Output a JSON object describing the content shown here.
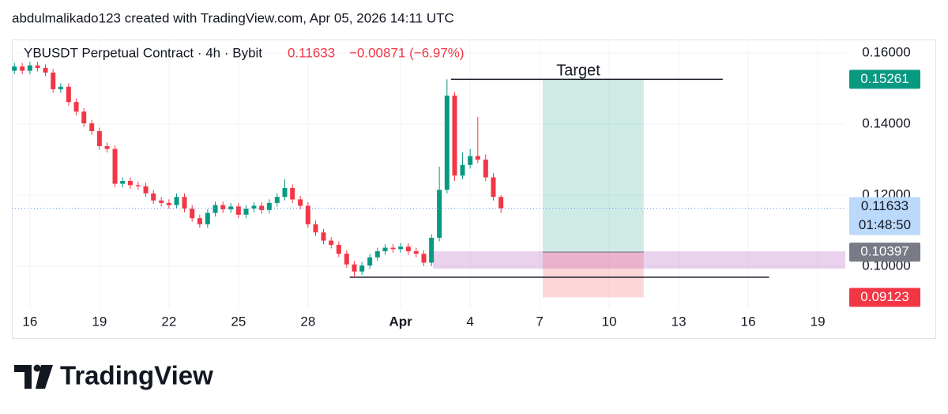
{
  "header": "abdulmalikado123 created with TradingView.com, Apr 05, 2026 14:11 UTC",
  "logo": "TradingView",
  "chart_data": {
    "type": "candlestick",
    "title": "YBUSDT Perpetual Contract · 4h · Bybit",
    "change": "−0.00871 (−6.97%)",
    "last_price": 0.11633,
    "countdown": "01:48:50",
    "up_color": "#089981",
    "down_color": "#f23645",
    "grid": true,
    "xlim": [
      15.22,
      51.19
    ],
    "ylim": [
      0.0882,
      0.1638
    ],
    "xticks": [
      16,
      19,
      22,
      25,
      28,
      {
        "value": 32,
        "label": "Apr"
      },
      {
        "value": 35,
        "label": "4"
      },
      {
        "value": 38,
        "label": "7"
      },
      {
        "value": 41,
        "label": "10"
      },
      {
        "value": 44,
        "label": "13"
      },
      {
        "value": 47,
        "label": "16"
      },
      {
        "value": 50,
        "label": "19"
      }
    ],
    "yticks": [
      {
        "value": 0.16,
        "label": "0.16000"
      },
      {
        "value": 0.14,
        "label": "0.14000"
      },
      {
        "value": 0.12,
        "label": "0.12000"
      },
      {
        "value": 0.1,
        "label": "0.10000"
      }
    ],
    "x": [
      15.33,
      15.67,
      16,
      16.33,
      16.67,
      17,
      17.33,
      17.67,
      18,
      18.33,
      18.67,
      19,
      19.33,
      19.67,
      20,
      20.33,
      20.67,
      21,
      21.33,
      21.67,
      22,
      22.33,
      22.67,
      23,
      23.33,
      23.67,
      24,
      24.33,
      24.67,
      25,
      25.33,
      25.67,
      26,
      26.33,
      26.67,
      27,
      27.33,
      27.67,
      28,
      28.33,
      28.67,
      29,
      29.33,
      29.67,
      30,
      30.33,
      30.67,
      31,
      31.33,
      31.67,
      32,
      32.33,
      32.67,
      33,
      33.33,
      33.67,
      34,
      34.33,
      34.67,
      35,
      35.33,
      35.67,
      36,
      36.33
    ],
    "open": [
      0.155,
      0.1562,
      0.155,
      0.1565,
      0.1558,
      0.1545,
      0.1498,
      0.1505,
      0.1462,
      0.1435,
      0.1402,
      0.138,
      0.1338,
      0.133,
      0.1232,
      0.124,
      0.1228,
      0.1225,
      0.1205,
      0.1185,
      0.1178,
      0.1172,
      0.1195,
      0.1162,
      0.1135,
      0.1118,
      0.115,
      0.1172,
      0.116,
      0.1168,
      0.1145,
      0.1162,
      0.117,
      0.1158,
      0.1178,
      0.1195,
      0.122,
      0.1188,
      0.117,
      0.1118,
      0.1095,
      0.1072,
      0.106,
      0.1035,
      0.1005,
      0.0985,
      0.1002,
      0.1025,
      0.1042,
      0.1052,
      0.1048,
      0.1055,
      0.1042,
      0.1035,
      0.101,
      0.108,
      0.1215,
      0.148,
      0.1255,
      0.1285,
      0.131,
      0.13,
      0.125,
      0.1195
    ],
    "high": [
      0.1572,
      0.1572,
      0.1575,
      0.1575,
      0.1568,
      0.1555,
      0.1515,
      0.1515,
      0.1472,
      0.1445,
      0.1412,
      0.139,
      0.1348,
      0.134,
      0.125,
      0.125,
      0.1238,
      0.1235,
      0.1215,
      0.1195,
      0.1188,
      0.1205,
      0.1205,
      0.1172,
      0.1145,
      0.116,
      0.1182,
      0.1182,
      0.1178,
      0.1178,
      0.1172,
      0.118,
      0.118,
      0.1188,
      0.1205,
      0.1245,
      0.123,
      0.1198,
      0.118,
      0.1128,
      0.1105,
      0.1082,
      0.107,
      0.1045,
      0.1015,
      0.1012,
      0.1035,
      0.1052,
      0.1062,
      0.1062,
      0.1065,
      0.1065,
      0.1052,
      0.1045,
      0.109,
      0.128,
      0.1526,
      0.149,
      0.132,
      0.133,
      0.142,
      0.1315,
      0.1262,
      0.12
    ],
    "low": [
      0.154,
      0.154,
      0.154,
      0.1548,
      0.1535,
      0.1488,
      0.1488,
      0.1452,
      0.1425,
      0.1392,
      0.137,
      0.1328,
      0.132,
      0.1222,
      0.1222,
      0.1218,
      0.1215,
      0.1195,
      0.1175,
      0.1168,
      0.1162,
      0.1162,
      0.1152,
      0.1125,
      0.1108,
      0.1108,
      0.114,
      0.115,
      0.115,
      0.1135,
      0.1135,
      0.1152,
      0.1148,
      0.1148,
      0.1168,
      0.1185,
      0.1178,
      0.116,
      0.1108,
      0.1085,
      0.1062,
      0.105,
      0.1025,
      0.0995,
      0.0969,
      0.0975,
      0.0992,
      0.1015,
      0.1032,
      0.1038,
      0.1038,
      0.1032,
      0.1025,
      0.1,
      0.1,
      0.107,
      0.1205,
      0.124,
      0.1245,
      0.1275,
      0.129,
      0.124,
      0.1185,
      0.115
    ],
    "close": [
      0.1562,
      0.155,
      0.1565,
      0.1558,
      0.1545,
      0.1498,
      0.1505,
      0.1462,
      0.1435,
      0.1402,
      0.138,
      0.1338,
      0.133,
      0.1232,
      0.124,
      0.1228,
      0.1225,
      0.1205,
      0.1185,
      0.1178,
      0.1172,
      0.1195,
      0.1162,
      0.1135,
      0.1118,
      0.115,
      0.1172,
      0.116,
      0.1168,
      0.1145,
      0.1162,
      0.117,
      0.1158,
      0.1178,
      0.1195,
      0.122,
      0.1188,
      0.117,
      0.1118,
      0.1095,
      0.1072,
      0.106,
      0.1035,
      0.1005,
      0.0985,
      0.1002,
      0.1025,
      0.1042,
      0.1052,
      0.1048,
      0.1055,
      0.1042,
      0.1035,
      0.101,
      0.108,
      0.1215,
      0.148,
      0.1255,
      0.1285,
      0.131,
      0.13,
      0.125,
      0.1195,
      0.1163
    ],
    "position": {
      "label": "Target",
      "x": [
        38.13,
        42.49
      ],
      "entry": 0.10397,
      "target": 0.15261,
      "stop": 0.09123
    },
    "zone": {
      "x": [
        33.4
      ],
      "ylim": [
        0.0993,
        0.1042
      ]
    },
    "lines": [
      {
        "x": [
          34.17,
          45.9
        ],
        "y": 0.1526
      },
      {
        "x": [
          29.8,
          47.9
        ],
        "y": 0.0969
      }
    ]
  }
}
